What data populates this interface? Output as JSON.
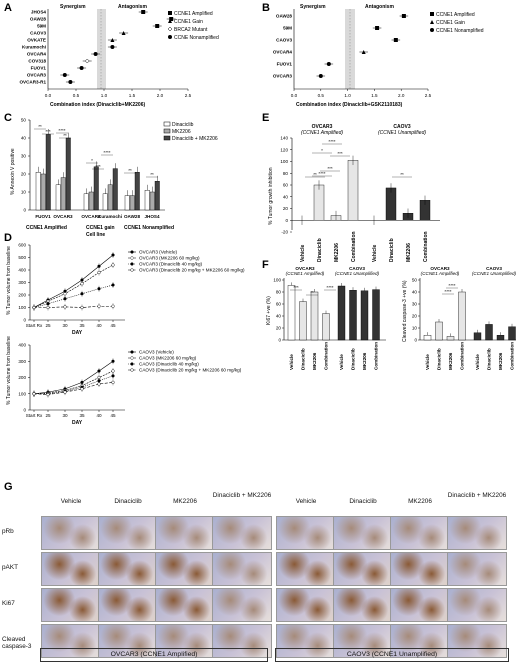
{
  "panels": {
    "A": "A",
    "B": "B",
    "C": "C",
    "D": "D",
    "E": "E",
    "F": "F",
    "G": "G"
  },
  "panelA": {
    "synergism": "Synergism",
    "antagonism": "Antagonism",
    "xlabel": "Combination index (Dinaciclib+MK2206)",
    "xticks": [
      "0.0",
      "0.5",
      "1.0",
      "1.5",
      "2.0",
      "2.5"
    ],
    "cell_lines": [
      "JHOS4",
      "OAW28",
      "59M",
      "CAOV3",
      "OVKATE",
      "Kuramochi",
      "OVCAR4",
      "COV318",
      "FUOV1",
      "OVCAR3",
      "OVCAR3-R1"
    ],
    "legend": [
      "CCNE1 Amplified",
      "CCNE1 Gain",
      "BRCA2 Mutant",
      "CCNE Nonamplified"
    ]
  },
  "panelB": {
    "synergism": "Synergism",
    "antagonism": "Antagonism",
    "xlabel": "Combination index (Dinaciclib+GSK2110183)",
    "xticks": [
      "0.0",
      "0.5",
      "1.0",
      "1.5",
      "2.0",
      "2.5"
    ],
    "cell_lines": [
      "OAW28",
      "59M",
      "CAOV3",
      "OVCAR4",
      "FUOV1",
      "OVCAR3"
    ],
    "legend": [
      "CCNE1 Amplified",
      "CCNE1 Gain",
      "CCNE1 Nonamplified"
    ]
  },
  "panelC": {
    "ylabel": "% Annexin V positive",
    "yticks": [
      "0",
      "10",
      "20",
      "30",
      "40",
      "50"
    ],
    "legend": [
      "Dinaciclib",
      "MK2206",
      "Dinaciclib + MK2206"
    ],
    "cells": [
      "FUOV1",
      "OVCAR3",
      "OVCAR4",
      "Kuramochi",
      "OAW28",
      "JHOS4"
    ],
    "groups": [
      "CCNE1 Amplified",
      "CCNE1 gain",
      "CCNE1 Nonamplified"
    ],
    "xlabel": "Cell line",
    "sig": [
      "**",
      "***",
      "****",
      "**",
      "*",
      "***",
      "****",
      "**",
      "**"
    ]
  },
  "panelD": {
    "ylabel": "% Tumor volume from baseline",
    "xlabel": "DAY",
    "xticks": [
      "Start Rx",
      "25",
      "30",
      "35",
      "40",
      "45"
    ],
    "yticks_top": [
      "0",
      "100",
      "200",
      "300",
      "400",
      "500",
      "600"
    ],
    "yticks_bot": [
      "0",
      "100",
      "200",
      "300",
      "400"
    ],
    "legend_top": [
      "OVCAR3 (Vehicle)",
      "OVCAR3 (MK2206 60 mg/kg)",
      "OVCAR3 (Dinaciclib 40 mg/kg)",
      "OVCAR3 (Dinaciclib 20 mg/kg + MK2206 60 mg/kg)"
    ],
    "legend_bot": [
      "CAOV3 (Vehicle)",
      "CAOV3 (MK2206 60 mg/kg)",
      "CAOV3 (Dinaciclib 40 mg/kg)",
      "CAOV3 (Dinaciclib 20 mg/kg + MK2206 60 mg/kg)"
    ]
  },
  "panelE": {
    "title1": "OVCAR3",
    "sub1": "(CCNE1 Amplified)",
    "title2": "CAOV3",
    "sub2": "(CCNE1 Unamplified)",
    "ylabel": "% Tumor growth inhibition",
    "yticks": [
      "-20",
      "0",
      "20",
      "40",
      "60",
      "80",
      "100",
      "120",
      "140"
    ],
    "xlabels": [
      "Vehicle",
      "Dinaciclib",
      "MK2206",
      "Combination",
      "Vehicle",
      "Dinaciclib",
      "MK2206",
      "Combination"
    ],
    "sig": [
      "****",
      "*",
      "***",
      "***",
      "****",
      "**",
      "**"
    ]
  },
  "panelF": {
    "title1": "OVCAR3",
    "sub1": "(CCNE1 Amplified)",
    "title2": "CAOV3",
    "sub2": "(CCNE1 Unamplified)",
    "ylabel_left": "Ki67 +ve (%)",
    "ylabel_right": "Cleaved caspase-3 +ve (%)",
    "yticks_left": [
      "0",
      "20",
      "40",
      "60",
      "80",
      "100"
    ],
    "yticks_right": [
      "0",
      "10",
      "20",
      "30",
      "40",
      "50"
    ],
    "xlabels": [
      "Vehicle",
      "Dinaciclib",
      "MK2206",
      "Combination",
      "Vehicle",
      "Dinaciclib",
      "MK2206",
      "Combination"
    ],
    "sig": [
      "***",
      "**",
      "****",
      "****",
      "****"
    ]
  },
  "panelG": {
    "columns": [
      "Vehicle",
      "Dinaciclib",
      "MK2206",
      "Dinaciclib + MK2206",
      "Vehicle",
      "Dinaciclib",
      "MK2206",
      "Dinaciclib + MK2206"
    ],
    "rows": [
      "pRb",
      "pAKT",
      "Ki67",
      "Cleaved caspase-3"
    ],
    "box1": "OVCAR3 (CCNE1 Amplified)",
    "box2": "CAOV3 (CCNE1 Unamplified)"
  },
  "chart_data": [
    {
      "type": "scatter",
      "title": "",
      "xlabel": "Combination index (Dinaciclib+MK2206)",
      "xlim": [
        0,
        2.5
      ],
      "categories": [
        "JHOS4",
        "OAW28",
        "59M",
        "CAOV3",
        "OVKATE",
        "Kuramochi",
        "OVCAR4",
        "COV318",
        "FUOV1",
        "OVCAR3",
        "OVCAR3-R1"
      ],
      "values": [
        1.7,
        2.2,
        1.95,
        1.35,
        1.15,
        1.15,
        0.85,
        0.7,
        0.6,
        0.3,
        0.4
      ]
    },
    {
      "type": "scatter",
      "title": "",
      "xlabel": "Combination index (Dinaciclib+GSK2110183)",
      "xlim": [
        0,
        2.5
      ],
      "categories": [
        "OAW28",
        "59M",
        "CAOV3",
        "OVCAR4",
        "FUOV1",
        "OVCAR3"
      ],
      "values": [
        2.05,
        1.55,
        1.9,
        1.3,
        0.65,
        0.5
      ]
    },
    {
      "type": "bar",
      "ylabel": "% Annexin V positive",
      "ylim": [
        0,
        50
      ],
      "categories": [
        "FUOV1",
        "OVCAR3",
        "OVCAR4",
        "Kuramochi",
        "OAW28",
        "JHOS4"
      ],
      "series": [
        {
          "name": "Dinaciclib",
          "values": [
            21,
            14,
            9,
            9,
            8,
            11
          ]
        },
        {
          "name": "MK2206",
          "values": [
            20,
            18,
            10,
            14,
            8,
            10
          ]
        },
        {
          "name": "Dinaciclib + MK2206",
          "values": [
            42,
            40,
            24,
            23,
            21,
            16
          ]
        }
      ]
    },
    {
      "type": "bar",
      "ylabel": "% Tumor growth inhibition",
      "ylim": [
        -20,
        140
      ],
      "categories": [
        "Vehicle",
        "Dinaciclib",
        "MK2206",
        "Combination",
        "Vehicle",
        "Dinaciclib",
        "MK2206",
        "Combination"
      ],
      "values": [
        0,
        60,
        8,
        102,
        0,
        55,
        12,
        34
      ]
    },
    {
      "type": "bar",
      "ylabel": "Ki67 +ve (%)",
      "ylim": [
        0,
        100
      ],
      "categories": [
        "Vehicle",
        "Dinaciclib",
        "MK2206",
        "Combination",
        "Vehicle",
        "Dinaciclib",
        "MK2206",
        "Combination"
      ],
      "values": [
        91,
        64,
        80,
        44,
        90,
        83,
        82,
        84
      ]
    },
    {
      "type": "bar",
      "ylabel": "Cleaved caspase-3 +ve (%)",
      "ylim": [
        0,
        50
      ],
      "categories": [
        "Vehicle",
        "Dinaciclib",
        "MK2206",
        "Combination",
        "Vehicle",
        "Dinaciclib",
        "MK2206",
        "Combination"
      ],
      "values": [
        4,
        15,
        3,
        40,
        6,
        13,
        4,
        11
      ]
    },
    {
      "type": "line",
      "xlabel": "DAY",
      "ylabel": "% Tumor volume from baseline",
      "ylim": [
        0,
        600
      ],
      "x": [
        21,
        25,
        30,
        35,
        40,
        43
      ],
      "series": [
        {
          "name": "OVCAR3 (Vehicle)",
          "values": [
            100,
            160,
            230,
            320,
            430,
            520
          ]
        },
        {
          "name": "OVCAR3 (MK2206 60 mg/kg)",
          "values": [
            100,
            150,
            210,
            290,
            380,
            440
          ]
        },
        {
          "name": "OVCAR3 (Dinaciclib 40 mg/kg)",
          "values": [
            100,
            130,
            170,
            210,
            250,
            280
          ]
        },
        {
          "name": "OVCAR3 (Dinaciclib 20 mg/kg + MK2206 60 mg/kg)",
          "values": [
            100,
            100,
            105,
            100,
            110,
            110
          ]
        }
      ]
    },
    {
      "type": "line",
      "xlabel": "DAY",
      "ylabel": "% Tumor volume from baseline",
      "ylim": [
        0,
        400
      ],
      "x": [
        21,
        25,
        30,
        35,
        40,
        43
      ],
      "series": [
        {
          "name": "CAOV3 (Vehicle)",
          "values": [
            100,
            110,
            130,
            170,
            240,
            300
          ]
        },
        {
          "name": "CAOV3 (MK2206 60 mg/kg)",
          "values": [
            100,
            105,
            120,
            150,
            200,
            240
          ]
        },
        {
          "name": "CAOV3 (Dinaciclib 40 mg/kg)",
          "values": [
            100,
            100,
            115,
            140,
            180,
            210
          ]
        },
        {
          "name": "CAOV3 (Dinaciclib 20 mg/kg + MK2206 60 mg/kg)",
          "values": [
            100,
            95,
            110,
            130,
            160,
            170
          ]
        }
      ]
    }
  ]
}
